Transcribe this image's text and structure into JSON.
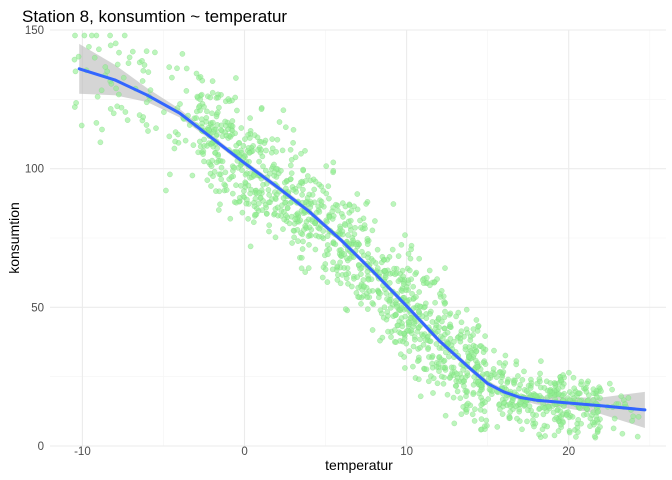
{
  "chart_data": {
    "type": "scatter",
    "title": "Station 8, konsumtion ~ temperatur",
    "xlabel": "temperatur",
    "ylabel": "konsumtion",
    "xlim": [
      -12,
      26
    ],
    "ylim": [
      0,
      150
    ],
    "x_ticks": [
      -10,
      0,
      10,
      20
    ],
    "x_tick_labels": [
      "-10",
      "0",
      "10",
      "20"
    ],
    "y_ticks": [
      0,
      50,
      100,
      150
    ],
    "y_tick_labels": [
      "0",
      "50",
      "100",
      "150"
    ],
    "grid": true,
    "colors": {
      "points": "#90EE90",
      "smooth": "#3366FF",
      "ribbon": "#BEBEBE"
    },
    "point_generation": {
      "n": 1500,
      "x_range": [
        -10.5,
        24.5
      ],
      "residual_sd": 10,
      "note_seeded": true
    },
    "smooth": {
      "method": "loess",
      "x": [
        -10.2,
        -8,
        -6,
        -4,
        -2,
        0,
        2,
        4,
        6,
        8,
        10,
        12,
        14,
        15,
        16,
        17,
        18,
        20,
        22,
        24.7
      ],
      "y": [
        136,
        132,
        126.5,
        120,
        111,
        102,
        93.5,
        84.5,
        74,
        62.5,
        50.5,
        38,
        27.5,
        22.5,
        19.5,
        17.5,
        16.5,
        15.5,
        14.5,
        13
      ],
      "lower": [
        127,
        126.5,
        124,
        118.5,
        110,
        101,
        92.5,
        83.5,
        73,
        61.5,
        49.5,
        37,
        26.5,
        21.5,
        18.5,
        16.5,
        15,
        13.5,
        11.5,
        6.5
      ],
      "upper": [
        145,
        137.5,
        129,
        121.5,
        112,
        103,
        94.5,
        85.5,
        75,
        63.5,
        51.5,
        39,
        28.5,
        23.5,
        20.5,
        18.5,
        18,
        17.5,
        17.5,
        19.5
      ]
    }
  }
}
